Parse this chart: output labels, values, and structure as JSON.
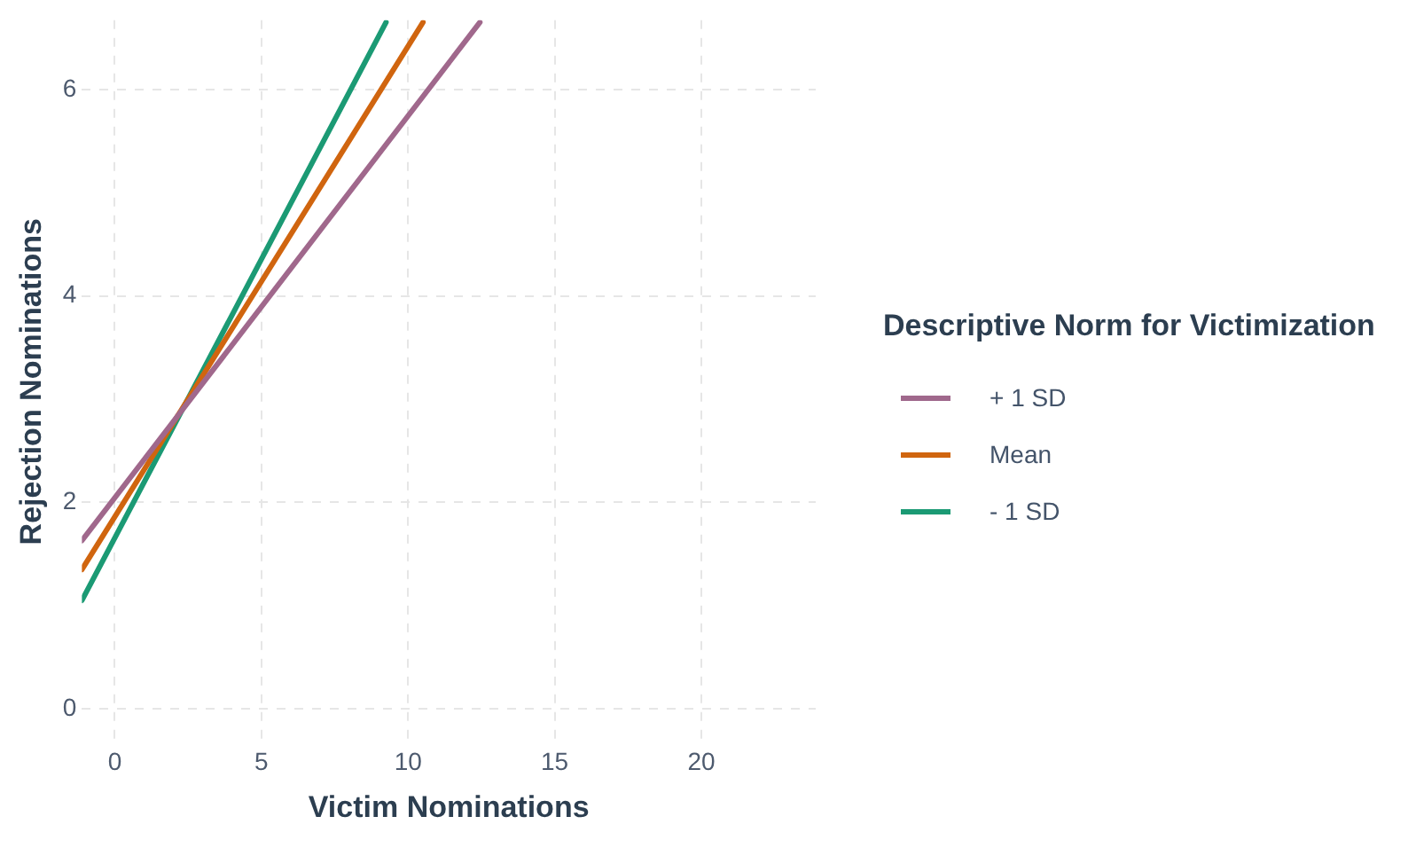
{
  "chart_data": {
    "type": "line",
    "xlabel": "Victim Nominations",
    "ylabel": "Rejection Nominations",
    "legend_title": "Descriptive Norm for Victimization",
    "xlim": [
      -1.12,
      23.9
    ],
    "ylim": [
      -0.33,
      6.67
    ],
    "xticks": [
      0,
      5,
      10,
      15,
      20
    ],
    "yticks": [
      0,
      2,
      4,
      6
    ],
    "grid": true,
    "legend": "right",
    "marker": "none",
    "line_style": "solid",
    "series": [
      {
        "name": "+ 1 SD",
        "color": "#a0688c",
        "x": [
          -1.12,
          12.45
        ],
        "values": [
          1.63,
          6.65
        ]
      },
      {
        "name": "Mean",
        "color": "#d0650f",
        "x": [
          -1.12,
          10.51
        ],
        "values": [
          1.35,
          6.65
        ]
      },
      {
        "name": "- 1 SD",
        "color": "#1b9a74",
        "x": [
          -1.12,
          9.25
        ],
        "values": [
          1.05,
          6.65
        ]
      }
    ]
  }
}
